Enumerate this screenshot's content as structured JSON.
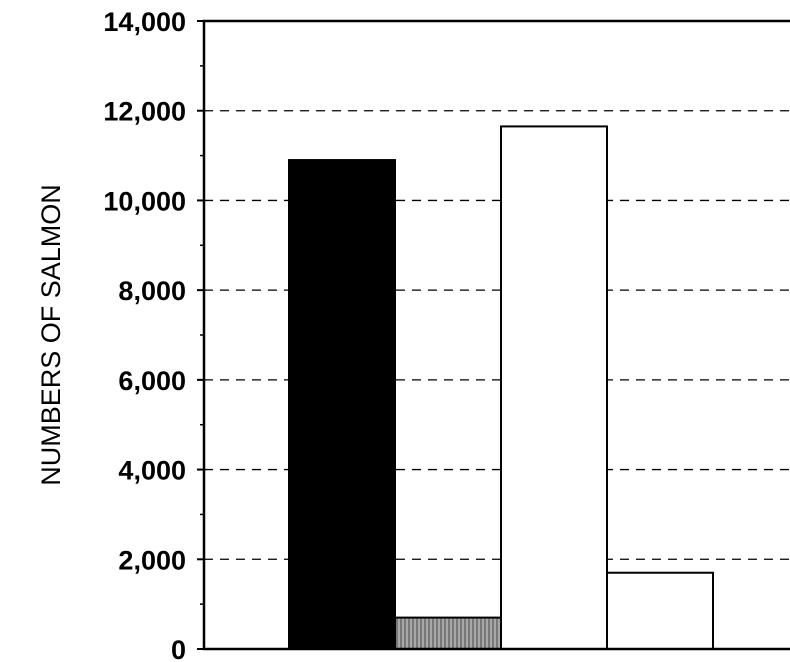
{
  "chart_data": {
    "type": "bar",
    "ylabel": "NUMBERS OF SALMON",
    "ylim": [
      0,
      14000
    ],
    "yticks": [
      0,
      2000,
      4000,
      6000,
      8000,
      10000,
      12000,
      14000
    ],
    "ytick_labels": [
      "0",
      "2,000",
      "4,000",
      "6,000",
      "8,000",
      "10,000",
      "12,000",
      "14,000"
    ],
    "grid": true,
    "values": [
      10900,
      700,
      11650,
      1700
    ],
    "bar_fills": [
      "#000000",
      "#9a9a9a",
      "#ffffff",
      "#ffffff"
    ]
  }
}
